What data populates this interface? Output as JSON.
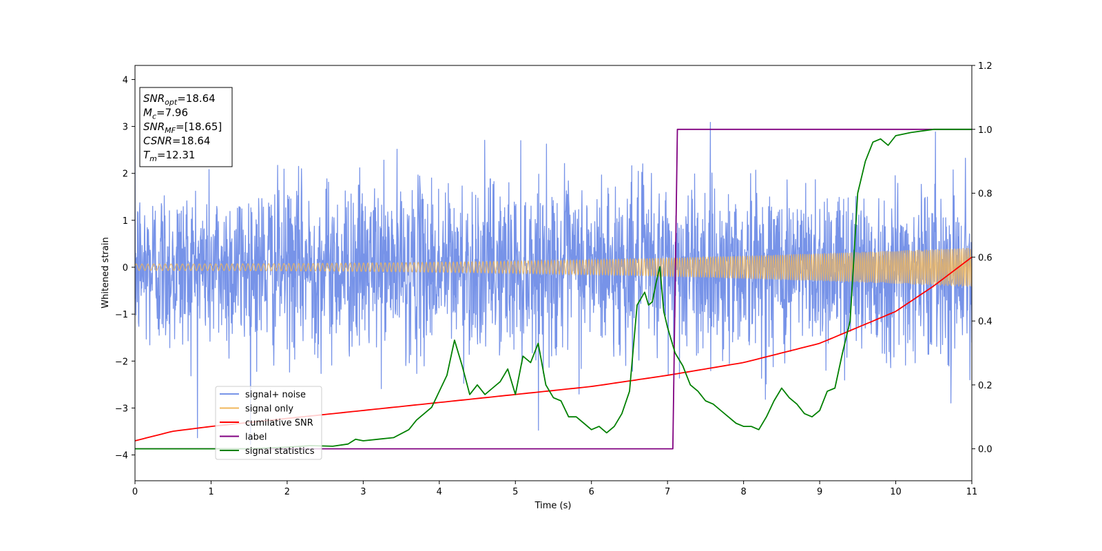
{
  "chart_data": {
    "type": "line",
    "xlabel": "Time (s)",
    "ylabel": "Whitened strain",
    "xlim": [
      0,
      11
    ],
    "ylim_left": [
      -4.55,
      4.3
    ],
    "ylim_right": [
      -0.1,
      1.2
    ],
    "x_ticks": [
      0,
      1,
      2,
      3,
      4,
      5,
      6,
      7,
      8,
      9,
      10,
      11
    ],
    "y_ticks_left": [
      -4,
      -3,
      -2,
      -1,
      0,
      1,
      2,
      3,
      4
    ],
    "y_ticks_right": [
      "0.0",
      "0.2",
      "0.4",
      "0.6",
      "0.8",
      "1.0",
      "1.2"
    ],
    "grid": false,
    "legend_position": "lower-left",
    "info_box": {
      "position": "top-left",
      "lines": [
        {
          "var": "SNR",
          "sub": "opt",
          "value": "=18.64"
        },
        {
          "var": "M",
          "sub": "c",
          "value": "=7.96"
        },
        {
          "var": "SNR",
          "sub": "MF",
          "value": "=[18.65]"
        },
        {
          "var": "CSNR",
          "sub": "",
          "value": "=18.64"
        },
        {
          "var": "T",
          "sub": "m",
          "value": "=12.31"
        }
      ]
    },
    "series": [
      {
        "name": "signal+ noise",
        "axis": "left",
        "color": "#7793e8",
        "kind": "noise",
        "approx_range": [
          -4.05,
          3.9
        ],
        "std": 0.9
      },
      {
        "name": "signal only",
        "axis": "left",
        "color": "#f0b65a",
        "kind": "chirp",
        "amplitude_start": 0.07,
        "amplitude_end": 0.42
      },
      {
        "name": "cumilative SNR",
        "axis": "right",
        "color": "#ff0000",
        "x": [
          0,
          0.5,
          1,
          2,
          3,
          4,
          5,
          6,
          7,
          8,
          9,
          10,
          10.5,
          11
        ],
        "y": [
          0.025,
          0.055,
          0.07,
          0.095,
          0.12,
          0.145,
          0.17,
          0.195,
          0.23,
          0.27,
          0.33,
          0.43,
          0.51,
          0.6
        ]
      },
      {
        "name": "label",
        "axis": "right",
        "color": "#800080",
        "x": [
          0,
          7.07,
          7.13,
          11
        ],
        "y": [
          0,
          0,
          1,
          1
        ]
      },
      {
        "name": "signal statistics",
        "axis": "right",
        "color": "#008000",
        "x": [
          0,
          1.5,
          2.0,
          2.3,
          2.6,
          2.8,
          2.9,
          3.0,
          3.2,
          3.4,
          3.6,
          3.7,
          3.9,
          4.1,
          4.2,
          4.3,
          4.4,
          4.5,
          4.6,
          4.7,
          4.8,
          4.9,
          5.0,
          5.1,
          5.2,
          5.3,
          5.4,
          5.5,
          5.6,
          5.7,
          5.8,
          5.9,
          6.0,
          6.1,
          6.2,
          6.3,
          6.4,
          6.5,
          6.6,
          6.7,
          6.75,
          6.8,
          6.85,
          6.9,
          6.95,
          7.0,
          7.1,
          7.2,
          7.3,
          7.4,
          7.5,
          7.6,
          7.7,
          7.8,
          7.9,
          8.0,
          8.1,
          8.2,
          8.3,
          8.4,
          8.5,
          8.6,
          8.7,
          8.8,
          8.9,
          9.0,
          9.1,
          9.2,
          9.3,
          9.4,
          9.5,
          9.6,
          9.7,
          9.8,
          9.9,
          10.0,
          10.2,
          10.5,
          11
        ],
        "y": [
          0.0,
          0.0,
          0.005,
          0.01,
          0.008,
          0.015,
          0.03,
          0.025,
          0.03,
          0.035,
          0.06,
          0.09,
          0.13,
          0.23,
          0.34,
          0.26,
          0.17,
          0.2,
          0.17,
          0.19,
          0.21,
          0.25,
          0.17,
          0.29,
          0.27,
          0.33,
          0.2,
          0.16,
          0.15,
          0.1,
          0.1,
          0.08,
          0.06,
          0.07,
          0.05,
          0.07,
          0.11,
          0.18,
          0.45,
          0.49,
          0.45,
          0.46,
          0.52,
          0.57,
          0.43,
          0.38,
          0.3,
          0.26,
          0.2,
          0.18,
          0.15,
          0.14,
          0.12,
          0.1,
          0.08,
          0.07,
          0.07,
          0.06,
          0.1,
          0.15,
          0.19,
          0.16,
          0.14,
          0.11,
          0.1,
          0.12,
          0.18,
          0.19,
          0.3,
          0.4,
          0.8,
          0.9,
          0.96,
          0.97,
          0.95,
          0.98,
          0.99,
          1.0,
          1.0
        ]
      }
    ]
  }
}
